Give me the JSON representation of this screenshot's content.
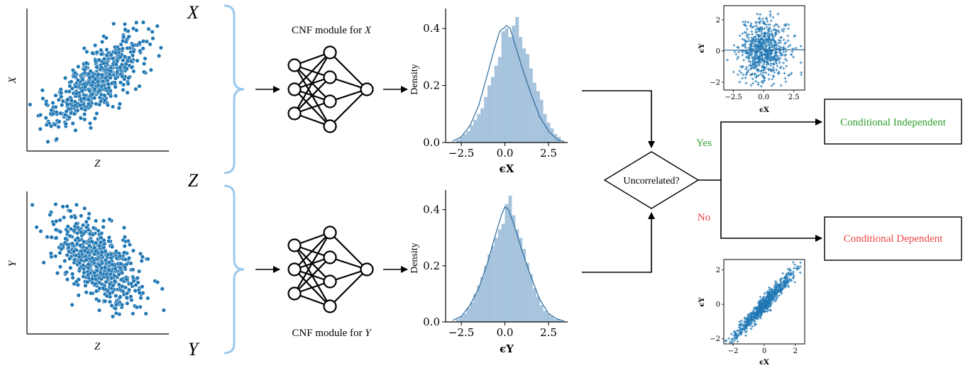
{
  "colors": {
    "point": "#1f77b4",
    "hist_fill": "#a6c3dd",
    "kde": "#2c6a9b",
    "brace": "#9cc9ee",
    "yes": "#2ca02c",
    "no": "#ee4444",
    "line": "#000000"
  },
  "inputs": {
    "scatter_xz": {
      "ylabel": "X",
      "xlabel": "Z"
    },
    "scatter_yz": {
      "ylabel": "Y",
      "xlabel": "Z"
    }
  },
  "vars": {
    "top": "X",
    "middle": "Z",
    "bottom": "Y"
  },
  "modules": {
    "x": {
      "caption": "CNF module for ",
      "var": "X"
    },
    "y": {
      "caption": "CNF module for ",
      "var": "Y"
    }
  },
  "decision": {
    "question": "Uncorrelated?",
    "yes_label": "Yes",
    "no_label": "No",
    "independent_label": "Conditional Independent",
    "dependent_label": "Conditional Dependent"
  },
  "chart_data": [
    {
      "type": "histogram",
      "id": "eps_x_density",
      "ylabel": "Density",
      "xlabel": "ϵX",
      "xlim": [
        -3.4,
        3.6
      ],
      "ylim": [
        0,
        0.47
      ],
      "xticks": [
        "−2.5",
        "0.0",
        "2.5"
      ],
      "xtick_values": [
        -2.5,
        0,
        2.5
      ],
      "yticks": [
        "0.0",
        "0.2",
        "0.4"
      ],
      "ytick_values": [
        0,
        0.2,
        0.4
      ],
      "bin_width": 0.2,
      "bins_start": -2.8,
      "bin_heights": [
        0.01,
        0.02,
        0.03,
        0.04,
        0.06,
        0.08,
        0.1,
        0.12,
        0.16,
        0.2,
        0.23,
        0.27,
        0.3,
        0.39,
        0.4,
        0.37,
        0.41,
        0.44,
        0.37,
        0.33,
        0.31,
        0.26,
        0.21,
        0.18,
        0.15,
        0.1,
        0.07,
        0.05,
        0.03,
        0.02
      ],
      "kde_x": [
        -3.0,
        -2.5,
        -2.0,
        -1.5,
        -1.0,
        -0.6,
        -0.3,
        -0.1,
        0.1,
        0.3,
        0.5,
        1.0,
        1.5,
        2.0,
        2.5,
        3.0,
        3.4
      ],
      "kde_y": [
        0.005,
        0.02,
        0.06,
        0.13,
        0.24,
        0.33,
        0.39,
        0.4,
        0.41,
        0.4,
        0.36,
        0.26,
        0.17,
        0.09,
        0.04,
        0.01,
        0.003
      ]
    },
    {
      "type": "histogram",
      "id": "eps_y_density",
      "ylabel": "Density",
      "xlabel": "ϵY",
      "xlim": [
        -3.4,
        3.6
      ],
      "ylim": [
        0,
        0.47
      ],
      "xticks": [
        "−2.5",
        "0.0",
        "2.5"
      ],
      "xtick_values": [
        -2.5,
        0,
        2.5
      ],
      "yticks": [
        "0.0",
        "0.2",
        "0.4"
      ],
      "ytick_values": [
        0,
        0.2,
        0.4
      ],
      "bin_width": 0.2,
      "bins_start": -2.8,
      "bin_heights": [
        0.01,
        0.02,
        0.03,
        0.05,
        0.07,
        0.1,
        0.13,
        0.16,
        0.2,
        0.24,
        0.27,
        0.3,
        0.33,
        0.35,
        0.42,
        0.45,
        0.38,
        0.33,
        0.3,
        0.26,
        0.21,
        0.17,
        0.12,
        0.09,
        0.06,
        0.04,
        0.03,
        0.02,
        0.01,
        0.01
      ],
      "kde_x": [
        -3.0,
        -2.5,
        -2.0,
        -1.5,
        -1.0,
        -0.5,
        -0.2,
        0.0,
        0.2,
        0.5,
        1.0,
        1.5,
        2.0,
        2.5,
        3.0,
        3.4
      ],
      "kde_y": [
        0.005,
        0.02,
        0.06,
        0.12,
        0.21,
        0.32,
        0.38,
        0.41,
        0.4,
        0.35,
        0.25,
        0.16,
        0.08,
        0.03,
        0.01,
        0.003
      ]
    },
    {
      "type": "scatter",
      "id": "eps_uncorrelated",
      "ylabel": "ϵY",
      "xlabel": "ϵX",
      "xlim": [
        -3.3,
        3.4
      ],
      "ylim": [
        -2.5,
        2.9
      ],
      "xticks": [
        "−2.5",
        "0.0",
        "2.5"
      ],
      "xtick_values": [
        -2.5,
        0,
        2.5
      ],
      "yticks": [
        "−2",
        "0",
        "2"
      ],
      "ytick_values": [
        -2,
        0,
        2
      ],
      "correlation": 0.0,
      "n_points": 650
    },
    {
      "type": "scatter",
      "id": "eps_correlated",
      "ylabel": "ϵY",
      "xlabel": "ϵX",
      "xlim": [
        -2.6,
        2.6
      ],
      "ylim": [
        -2.3,
        2.6
      ],
      "xticks": [
        "−2",
        "0",
        "2"
      ],
      "xtick_values": [
        -2,
        0,
        2
      ],
      "yticks": [
        "−2",
        "0",
        "2"
      ],
      "ytick_values": [
        -2,
        0,
        2
      ],
      "correlation": 0.97,
      "n_points": 650
    },
    {
      "type": "scatter",
      "id": "x_vs_z",
      "correlation": 0.75,
      "n_points": 600
    },
    {
      "type": "scatter",
      "id": "y_vs_z",
      "correlation": -0.55,
      "n_points": 600
    }
  ]
}
